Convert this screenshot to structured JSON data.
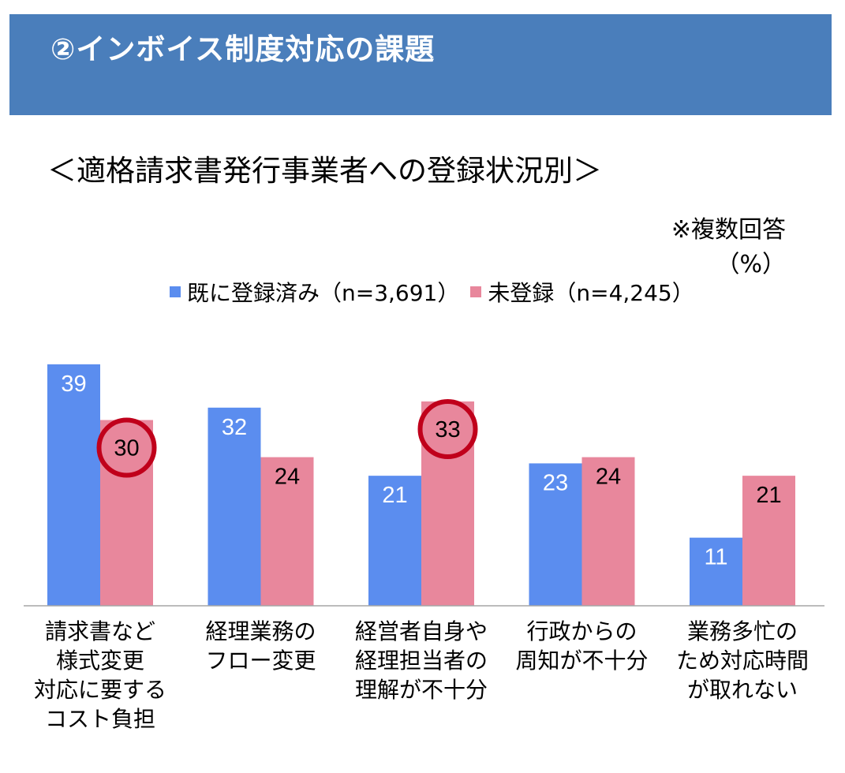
{
  "header": {
    "title": "②インボイス制度対応の課題"
  },
  "subtitle": "＜適格請求書発行事業者への登録状況別＞",
  "note": {
    "multiple_answers": "※複数回答",
    "unit": "（%）"
  },
  "colors": {
    "banner": "#4a7ebb",
    "series_registered": "#5b8def",
    "series_unregistered": "#e8879c",
    "highlight_circle": "#c0001b"
  },
  "chart_data": {
    "type": "bar",
    "categories": [
      [
        "請求書など",
        "様式変更",
        "対応に要する",
        "コスト負担"
      ],
      [
        "経理業務の",
        "フロー変更"
      ],
      [
        "経営者自身や",
        "経理担当者の",
        "理解が不十分"
      ],
      [
        "行政からの",
        "周知が不十分"
      ],
      [
        "業務多忙の",
        "ため対応時間",
        "が取れない"
      ]
    ],
    "series": [
      {
        "name": "既に登録済み（n=3,691）",
        "values": [
          39,
          32,
          21,
          23,
          11
        ]
      },
      {
        "name": "未登録（n=4,245）",
        "values": [
          30,
          24,
          33,
          24,
          21
        ]
      }
    ],
    "highlighted": [
      {
        "series": 1,
        "category": 0
      },
      {
        "series": 1,
        "category": 2
      }
    ],
    "ylim": [
      0,
      40
    ],
    "legend_position": "top",
    "grid": false,
    "xlabel": "",
    "ylabel": ""
  }
}
